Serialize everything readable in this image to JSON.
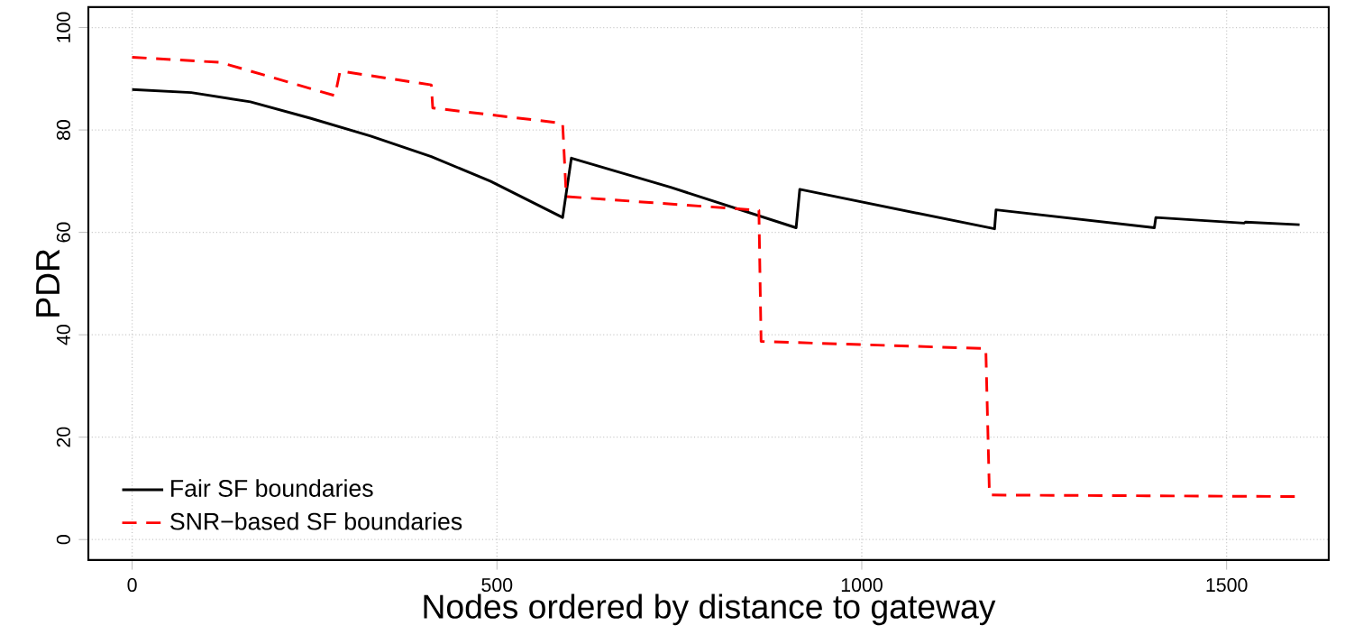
{
  "chart_data": {
    "type": "line",
    "xlabel": "Nodes ordered by distance to gateway",
    "ylabel": "PDR",
    "xlim": [
      -60,
      1640
    ],
    "ylim": [
      -4,
      104
    ],
    "xticks": [
      0,
      500,
      1000,
      1500
    ],
    "yticks": [
      0,
      20,
      40,
      60,
      80,
      100
    ],
    "grid": true,
    "legend": "bottom left",
    "marker": "none",
    "series": [
      {
        "name": "Fair SF boundaries",
        "color": "#000000",
        "line_style": "solid",
        "x": [
          0,
          81,
          162,
          244,
          327,
          410,
          491,
          590,
          602,
          738,
          910,
          915,
          1182,
          1184,
          1401,
          1403,
          1524,
          1526,
          1600
        ],
        "values": [
          87.9,
          87.3,
          85.5,
          82.3,
          78.8,
          74.8,
          70.0,
          62.9,
          74.5,
          68.8,
          60.9,
          68.4,
          60.7,
          64.4,
          60.9,
          62.9,
          61.8,
          62.0,
          61.5
        ]
      },
      {
        "name": "SNR−based SF boundaries",
        "color": "#ff0000",
        "line_style": "dashed",
        "x": [
          0,
          121,
          278,
          285,
          410,
          412,
          590,
          595,
          859,
          862,
          1170,
          1175,
          1595
        ],
        "values": [
          94.2,
          93.2,
          86.7,
          91.5,
          88.8,
          84.3,
          81.3,
          67.0,
          64.3,
          38.7,
          37.3,
          8.7,
          8.4
        ]
      }
    ]
  }
}
